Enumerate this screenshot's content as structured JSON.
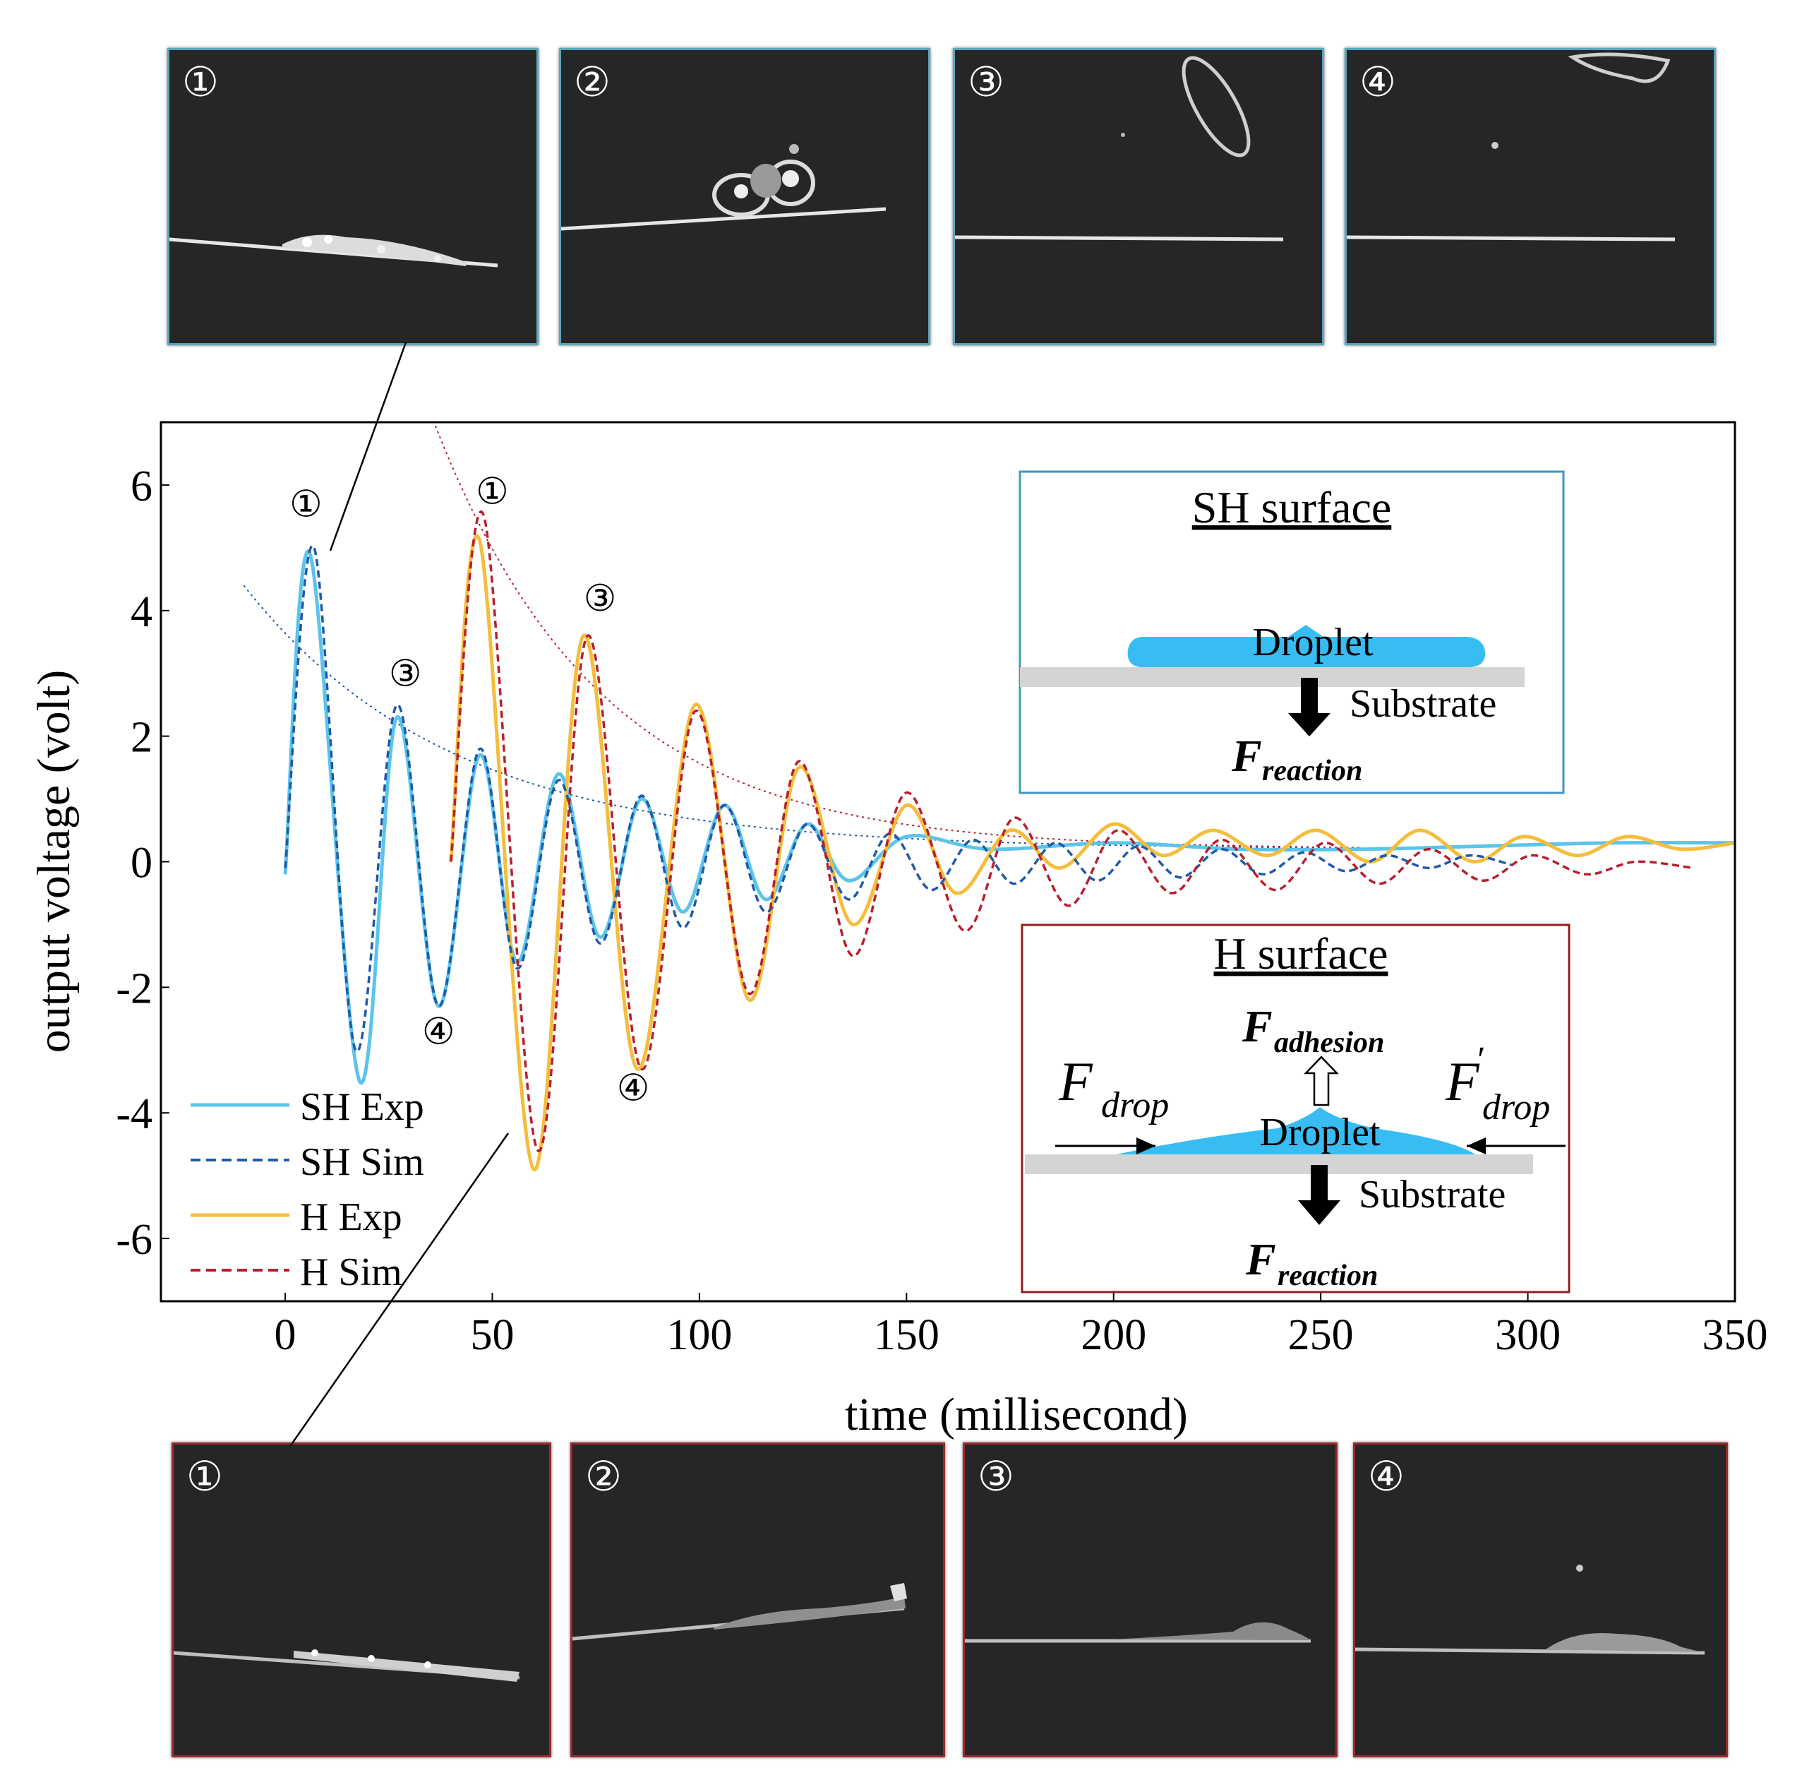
{
  "top_photos": {
    "surface": "SH",
    "frames": [
      {
        "label": "①",
        "scene": "spread"
      },
      {
        "label": "②",
        "scene": "contract"
      },
      {
        "label": "③",
        "scene": "bounce"
      },
      {
        "label": "④",
        "scene": "bounce-far"
      }
    ]
  },
  "bottom_photos": {
    "surface": "H",
    "frames": [
      {
        "label": "①",
        "scene": "spread"
      },
      {
        "label": "②",
        "scene": "film"
      },
      {
        "label": "③",
        "scene": "film-bump"
      },
      {
        "label": "④",
        "scene": "film-small"
      }
    ]
  },
  "chart_data": {
    "type": "line",
    "xlabel": "time (millisecond)",
    "ylabel": "output voltage (volt)",
    "xlim": [
      -30,
      350
    ],
    "ylim": [
      -7,
      7
    ],
    "xticks": [
      0,
      50,
      100,
      150,
      200,
      250,
      300,
      350
    ],
    "yticks": [
      6,
      4,
      2,
      0,
      -2,
      -4,
      -6
    ],
    "legend_position": "bottom-left",
    "colors": {
      "sh_exp": "#5bc4ea",
      "sh_sim": "#1f5aa8",
      "h_exp": "#f4bd3c",
      "h_sim": "#b81f2d",
      "sh_box": "#3f96c2",
      "h_box": "#8f1d1d",
      "droplet": "#38bdf2",
      "substrate": "#d4d4d4"
    },
    "series": [
      {
        "name": "SH Exp",
        "style": "solid",
        "color_key": "sh_exp",
        "x": [
          0,
          6,
          18,
          27,
          37,
          47,
          56,
          66,
          76,
          86,
          96,
          106,
          116,
          126,
          136,
          150,
          170,
          200,
          230,
          260,
          290,
          320,
          350
        ],
        "y": [
          -0.2,
          4.9,
          -3.5,
          2.3,
          -2.3,
          1.7,
          -1.6,
          1.4,
          -1.2,
          1.0,
          -0.8,
          0.9,
          -0.6,
          0.6,
          -0.3,
          0.4,
          0.2,
          0.3,
          0.2,
          0.2,
          0.25,
          0.3,
          0.3
        ]
      },
      {
        "name": "SH Sim",
        "style": "dashed",
        "color_key": "sh_sim",
        "x": [
          0,
          7,
          17,
          27,
          37,
          47,
          56,
          66,
          76,
          86,
          96,
          106,
          116,
          126,
          136,
          146,
          156,
          166,
          176,
          186,
          196,
          206,
          216,
          226,
          236,
          246,
          256,
          266,
          276,
          286,
          296
        ],
        "y": [
          -0.1,
          5.0,
          -3.0,
          2.5,
          -2.3,
          1.8,
          -1.7,
          1.3,
          -1.3,
          1.05,
          -1.05,
          0.9,
          -0.8,
          0.6,
          -0.6,
          0.45,
          -0.45,
          0.35,
          -0.35,
          0.3,
          -0.3,
          0.25,
          -0.25,
          0.2,
          -0.2,
          0.15,
          -0.15,
          0.1,
          -0.1,
          0.1,
          -0.05
        ]
      },
      {
        "name": "H Exp",
        "style": "solid",
        "color_key": "h_exp",
        "x": [
          40,
          47,
          60,
          72,
          85,
          99,
          112,
          124,
          137,
          150,
          162,
          175,
          187,
          200,
          212,
          224,
          237,
          249,
          262,
          274,
          287,
          299,
          312,
          324,
          337,
          350
        ],
        "y": [
          0,
          5.1,
          -4.9,
          3.6,
          -3.3,
          2.5,
          -2.2,
          1.5,
          -1.0,
          0.9,
          -0.5,
          0.5,
          -0.1,
          0.6,
          0.1,
          0.5,
          0.1,
          0.5,
          0.0,
          0.5,
          0.0,
          0.4,
          0.1,
          0.4,
          0.2,
          0.3
        ]
      },
      {
        "name": "H Sim",
        "style": "dashed",
        "color_key": "h_sim",
        "x": [
          40,
          48,
          61,
          73,
          86,
          99,
          112,
          124,
          137,
          150,
          164,
          176,
          189,
          201,
          214,
          226,
          239,
          251,
          264,
          276,
          289,
          301,
          314,
          326,
          340
        ],
        "y": [
          0,
          5.5,
          -4.6,
          3.6,
          -3.3,
          2.4,
          -2.1,
          1.6,
          -1.5,
          1.1,
          -1.1,
          0.7,
          -0.7,
          0.5,
          -0.5,
          0.35,
          -0.45,
          0.3,
          -0.35,
          0.2,
          -0.3,
          0.1,
          -0.2,
          0.0,
          -0.1
        ]
      }
    ],
    "envelopes": [
      {
        "name": "SH envelope",
        "color_key": "sh_sim",
        "x_start": -10,
        "x_end": 260,
        "a": 4.2,
        "tau": 50
      },
      {
        "name": "H envelope",
        "color_key": "h_sim",
        "x_start": 32,
        "x_end": 260,
        "a": 7.5,
        "tau": 40
      }
    ],
    "annotations": [
      {
        "text": "①",
        "x": 5,
        "y": 5.5
      },
      {
        "text": "③",
        "x": 29,
        "y": 2.8
      },
      {
        "text": "④",
        "x": 37,
        "y": -2.9
      },
      {
        "text": "①",
        "x": 50,
        "y": 5.7
      },
      {
        "text": "③",
        "x": 76,
        "y": 4.0
      },
      {
        "text": "④",
        "x": 84,
        "y": -3.8
      }
    ],
    "inset_sh": {
      "title": "SH surface",
      "droplet_label": "Droplet",
      "substrate_label": "Substrate",
      "force_main": "F",
      "force_sub": "reaction"
    },
    "inset_h": {
      "title": "H surface",
      "droplet_label": "Droplet",
      "substrate_label": "Substrate",
      "adhesion_main": "F",
      "adhesion_sub": "adhesion",
      "drop_left_main": "F",
      "drop_left_sub": "drop",
      "drop_right_main": "F",
      "drop_right_prime": "′",
      "drop_right_sub": "drop",
      "reaction_main": "F",
      "reaction_sub": "reaction"
    }
  }
}
